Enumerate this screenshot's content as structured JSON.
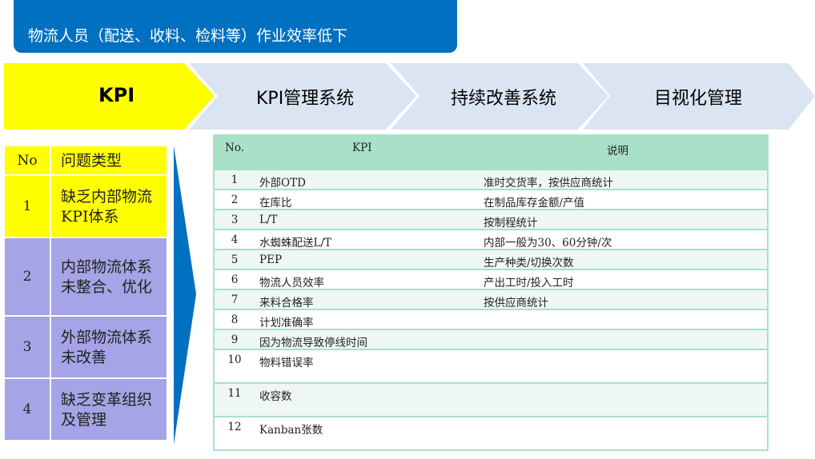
{
  "banner": {
    "text": "物流人员（配送、收料、检料等）作业效率低下"
  },
  "steps": [
    {
      "label": "KPI",
      "active": true
    },
    {
      "label": "KPI管理系统"
    },
    {
      "label": "持续改善系统"
    },
    {
      "label": "目视化管理"
    }
  ],
  "problems": {
    "headers": [
      "No",
      "问题类型"
    ],
    "rows": [
      {
        "no": "1",
        "text": "缺乏内部物流KPI体系"
      },
      {
        "no": "2",
        "text": "内部物流体系未整合、优化"
      },
      {
        "no": "3",
        "text": "外部物流体系未改善"
      },
      {
        "no": "4",
        "text": "缺乏变革组织及管理"
      }
    ]
  },
  "kpi_table": {
    "headers": [
      "No.",
      "KPI",
      "说明"
    ],
    "rows": [
      {
        "no": "1",
        "kpi": "外部OTD",
        "desc": "准时交货率，按供应商统计"
      },
      {
        "no": "2",
        "kpi": "在库比",
        "desc": "在制品库存金额/产值"
      },
      {
        "no": "3",
        "kpi": "L/T",
        "desc": "按制程统计"
      },
      {
        "no": "4",
        "kpi": "水蜘蛛配送L/T",
        "desc": "内部一般为30、60分钟/次"
      },
      {
        "no": "5",
        "kpi": "PEP",
        "desc": "生产种类/切换次数"
      },
      {
        "no": "6",
        "kpi": "物流人员效率",
        "desc": "产出工时/投入工时"
      },
      {
        "no": "7",
        "kpi": "来料合格率",
        "desc": "按供应商统计"
      },
      {
        "no": "8",
        "kpi": "计划准确率",
        "desc": ""
      },
      {
        "no": "9",
        "kpi": "因为物流导致停线时间",
        "desc": ""
      },
      {
        "no": "10",
        "kpi": "物料错误率",
        "desc": ""
      },
      {
        "no": "11",
        "kpi": "收容数",
        "desc": ""
      },
      {
        "no": "12",
        "kpi": "Kanban张数",
        "desc": ""
      }
    ]
  },
  "colors": {
    "banner": "#0070c0",
    "active_step": "#ffff00",
    "step": "#dbe5f1",
    "problem_highlight": "#ffff00",
    "problem": "#a4a4e6",
    "table_header": "#a8e0c8"
  }
}
